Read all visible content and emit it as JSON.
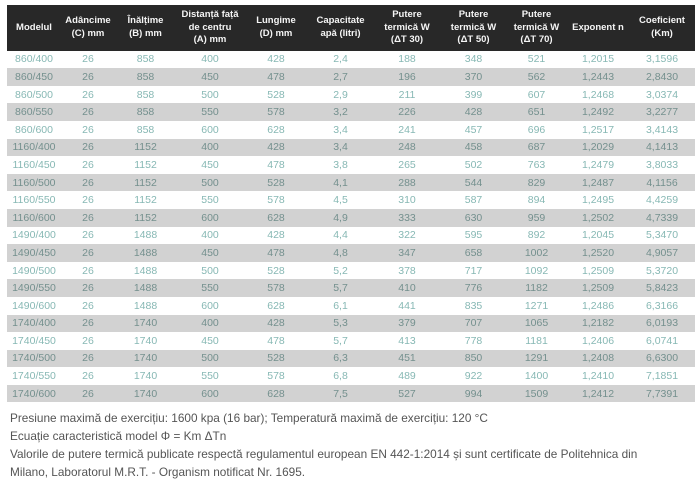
{
  "table": {
    "columns": [
      "Modelul",
      "Adâncime\n(C) mm",
      "Înălțime\n(B) mm",
      "Distanță față\nde centru\n(A) mm",
      "Lungime\n(D) mm",
      "Capacitate\napă (litri)",
      "Putere\ntermică W\n(ΔT 30)",
      "Putere\ntermică W\n(ΔT 50)",
      "Putere\ntermică W\n(ΔT 70)",
      "Exponent n",
      "Coeficient\n(Km)"
    ],
    "rows": [
      [
        "860/400",
        "26",
        "858",
        "400",
        "428",
        "2,4",
        "188",
        "348",
        "521",
        "1,2015",
        "3,1596"
      ],
      [
        "860/450",
        "26",
        "858",
        "450",
        "478",
        "2,7",
        "196",
        "370",
        "562",
        "1,2443",
        "2,8430"
      ],
      [
        "860/500",
        "26",
        "858",
        "500",
        "528",
        "2,9",
        "211",
        "399",
        "607",
        "1,2468",
        "3,0374"
      ],
      [
        "860/550",
        "26",
        "858",
        "550",
        "578",
        "3,2",
        "226",
        "428",
        "651",
        "1,2492",
        "3,2277"
      ],
      [
        "860/600",
        "26",
        "858",
        "600",
        "628",
        "3,4",
        "241",
        "457",
        "696",
        "1,2517",
        "3,4143"
      ],
      [
        "1160/400",
        "26",
        "1152",
        "400",
        "428",
        "3,4",
        "248",
        "458",
        "687",
        "1,2029",
        "4,1413"
      ],
      [
        "1160/450",
        "26",
        "1152",
        "450",
        "478",
        "3,8",
        "265",
        "502",
        "763",
        "1,2479",
        "3,8033"
      ],
      [
        "1160/500",
        "26",
        "1152",
        "500",
        "528",
        "4,1",
        "288",
        "544",
        "829",
        "1,2487",
        "4,1156"
      ],
      [
        "1160/550",
        "26",
        "1152",
        "550",
        "578",
        "4,5",
        "310",
        "587",
        "894",
        "1,2495",
        "4,4259"
      ],
      [
        "1160/600",
        "26",
        "1152",
        "600",
        "628",
        "4,9",
        "333",
        "630",
        "959",
        "1,2502",
        "4,7339"
      ],
      [
        "1490/400",
        "26",
        "1488",
        "400",
        "428",
        "4,4",
        "322",
        "595",
        "892",
        "1,2045",
        "5,3470"
      ],
      [
        "1490/450",
        "26",
        "1488",
        "450",
        "478",
        "4,8",
        "347",
        "658",
        "1002",
        "1,2520",
        "4,9057"
      ],
      [
        "1490/500",
        "26",
        "1488",
        "500",
        "528",
        "5,2",
        "378",
        "717",
        "1092",
        "1,2509",
        "5,3720"
      ],
      [
        "1490/550",
        "26",
        "1488",
        "550",
        "578",
        "5,7",
        "410",
        "776",
        "1182",
        "1,2509",
        "5,8423"
      ],
      [
        "1490/600",
        "26",
        "1488",
        "600",
        "628",
        "6,1",
        "441",
        "835",
        "1271",
        "1,2486",
        "6,3166"
      ],
      [
        "1740/400",
        "26",
        "1740",
        "400",
        "428",
        "5,3",
        "379",
        "707",
        "1065",
        "1,2182",
        "6,0193"
      ],
      [
        "1740/450",
        "26",
        "1740",
        "450",
        "478",
        "5,7",
        "413",
        "778",
        "1181",
        "1,2406",
        "6,0741"
      ],
      [
        "1740/500",
        "26",
        "1740",
        "500",
        "528",
        "6,3",
        "451",
        "850",
        "1291",
        "1,2408",
        "6,6300"
      ],
      [
        "1740/550",
        "26",
        "1740",
        "550",
        "578",
        "6,8",
        "489",
        "922",
        "1400",
        "1,2410",
        "7,1851"
      ],
      [
        "1740/600",
        "26",
        "1740",
        "600",
        "628",
        "7,5",
        "527",
        "994",
        "1509",
        "1,2412",
        "7,7391"
      ]
    ]
  },
  "footer": {
    "line1": "Presiune maximă de exercițiu: 1600 kpa (16 bar); Temperatură maximă de exercițiu: 120 °C",
    "line2": "Ecuație caracteristică model Φ = Km ΔTn",
    "line3": "Valorile de putere termică publicate respectă regulamentul european EN 442-1:2014 și sunt certificate de Politehnica din Milano, Laboratorul M.R.T. - Organism notificat Nr. 1695."
  },
  "colors": {
    "header_bg": "#282828",
    "header_text": "#f5f5f5",
    "row_bg": "#ffffff",
    "row_alt_bg": "#d2d2d2",
    "value_text": "#87b8b4",
    "value_text_alt": "#74908e",
    "note_text": "#555555"
  }
}
